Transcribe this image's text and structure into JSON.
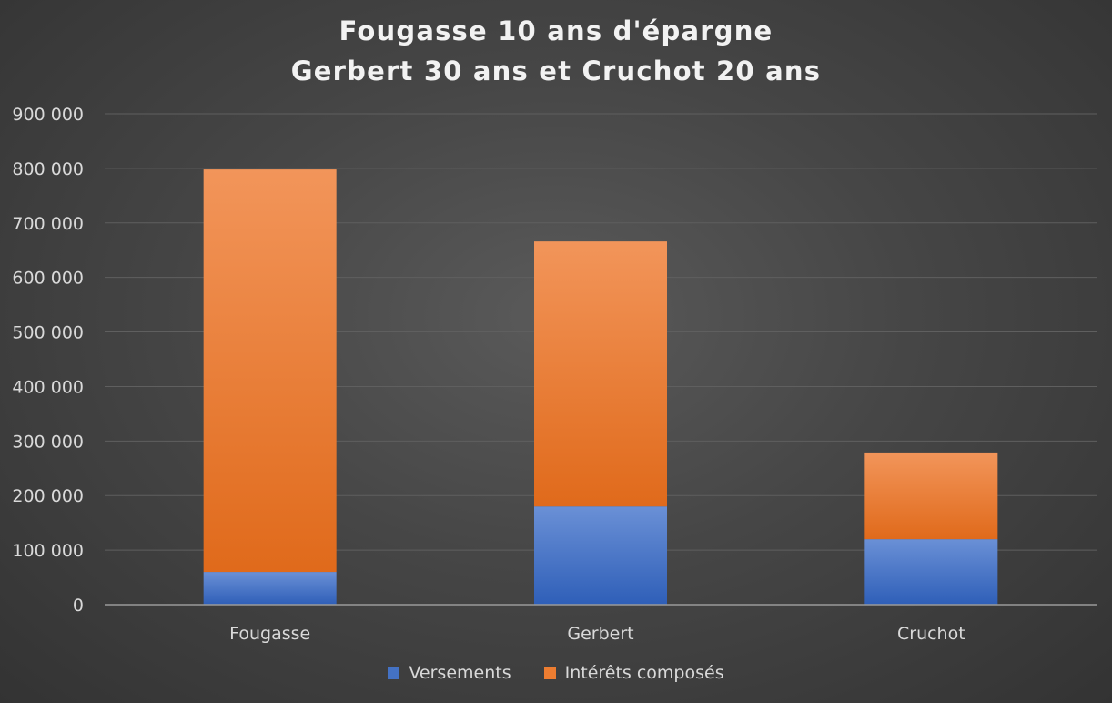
{
  "colors": {
    "versements": "#4472c4",
    "interets": "#ed7d31",
    "text": "#d9d9d9",
    "grid": "#5f5f5f"
  },
  "chart_data": {
    "type": "bar",
    "stacked": true,
    "title": [
      "Fougasse 10 ans d'épargne",
      "Gerbert 30 ans et Cruchot 20 ans"
    ],
    "categories": [
      "Fougasse",
      "Gerbert",
      "Cruchot"
    ],
    "series": [
      {
        "name": "Versements",
        "values": [
          60000,
          180000,
          120000
        ]
      },
      {
        "name": "Intérêts composés",
        "values": [
          738000,
          486000,
          159000
        ]
      }
    ],
    "ylim": [
      0,
      900000
    ],
    "yticks": [
      0,
      100000,
      200000,
      300000,
      400000,
      500000,
      600000,
      700000,
      800000,
      900000
    ],
    "ytick_labels": [
      "0",
      "100 000",
      "200 000",
      "300 000",
      "400 000",
      "500 000",
      "600 000",
      "700 000",
      "800 000",
      "900 000"
    ],
    "grid": true,
    "legend_position": "bottom"
  }
}
